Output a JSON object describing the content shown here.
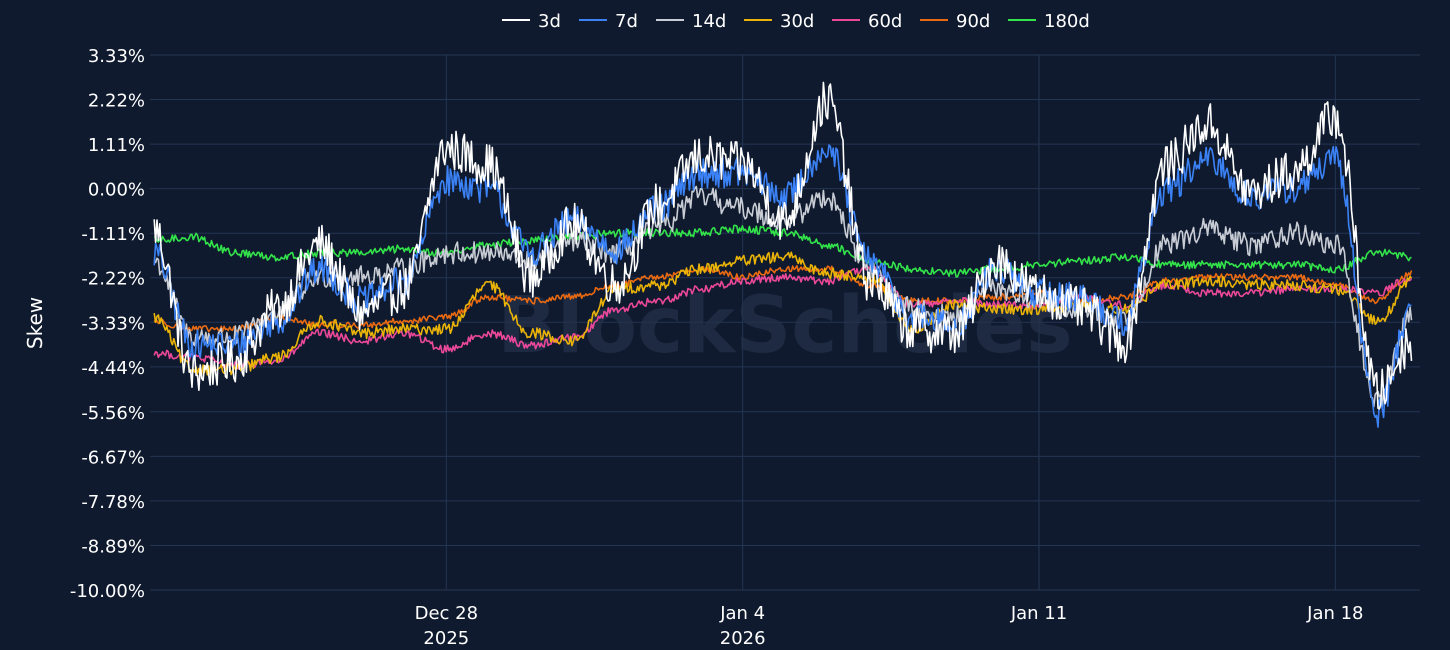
{
  "chart_data": {
    "type": "line",
    "title": "",
    "ylabel": "Skew",
    "xlabel": "",
    "watermark": "BlockScholes",
    "ylim": [
      -10.0,
      3.33
    ],
    "yticks": [
      "3.33%",
      "2.22%",
      "1.11%",
      "0.00%",
      "-1.11%",
      "-2.22%",
      "-3.33%",
      "-4.44%",
      "-5.56%",
      "-6.67%",
      "-7.78%",
      "-8.89%",
      "-10.00%"
    ],
    "ytick_values": [
      3.33,
      2.22,
      1.11,
      0.0,
      -1.11,
      -2.22,
      -3.33,
      -4.44,
      -5.56,
      -6.67,
      -7.78,
      -8.89,
      -10.0
    ],
    "x_range_days": [
      -7,
      23
    ],
    "xticks": [
      {
        "day": 0,
        "label": "Dec 28",
        "sublabel": "2025"
      },
      {
        "day": 7,
        "label": "Jan 4",
        "sublabel": "2026"
      },
      {
        "day": 14,
        "label": "Jan 11",
        "sublabel": ""
      },
      {
        "day": 21,
        "label": "Jan 18",
        "sublabel": ""
      }
    ],
    "legend": [
      "3d",
      "7d",
      "14d",
      "30d",
      "60d",
      "90d",
      "180d"
    ],
    "legend_position": "top-center",
    "x_days": [
      -6.9,
      -6,
      -5,
      -4,
      -3,
      -2,
      -1,
      0,
      1,
      2,
      3,
      4,
      5,
      6,
      7,
      8,
      9,
      10,
      11,
      12,
      13,
      14,
      15,
      16,
      17,
      18,
      19,
      20,
      21,
      22,
      22.8
    ],
    "series": [
      {
        "name": "3d",
        "color": "#ffffff",
        "values": [
          -1.0,
          -4.6,
          -4.3,
          -3.0,
          -1.4,
          -3.1,
          -2.5,
          1.0,
          0.6,
          -2.2,
          -0.9,
          -2.4,
          -0.4,
          0.8,
          0.6,
          -0.8,
          2.2,
          -2.3,
          -3.5,
          -3.6,
          -1.8,
          -2.6,
          -3.0,
          -3.8,
          0.6,
          1.6,
          -0.1,
          0.4,
          1.8,
          -5.1,
          -3.8
        ]
      },
      {
        "name": "7d",
        "color": "#3b82f6",
        "values": [
          -1.6,
          -3.9,
          -3.9,
          -3.3,
          -2.0,
          -2.8,
          -2.3,
          0.2,
          0.0,
          -1.6,
          -0.8,
          -1.5,
          -0.5,
          0.4,
          0.4,
          -0.2,
          1.0,
          -1.8,
          -3.2,
          -3.4,
          -2.0,
          -2.6,
          -2.7,
          -3.3,
          0.0,
          0.7,
          -0.2,
          0.0,
          0.7,
          -5.6,
          -3.0
        ]
      },
      {
        "name": "14d",
        "color": "#c8ccd4",
        "values": [
          -1.8,
          -3.7,
          -3.7,
          -3.1,
          -2.2,
          -2.2,
          -2.0,
          -1.6,
          -1.6,
          -1.8,
          -1.3,
          -1.6,
          -1.0,
          -0.2,
          -0.5,
          -0.8,
          -0.2,
          -2.0,
          -3.0,
          -3.2,
          -2.5,
          -2.8,
          -3.0,
          -3.2,
          -1.4,
          -1.0,
          -1.4,
          -1.1,
          -1.4,
          -5.3,
          -3.1
        ]
      },
      {
        "name": "30d",
        "color": "#eab308",
        "values": [
          -3.2,
          -4.5,
          -4.5,
          -4.2,
          -3.3,
          -3.6,
          -3.5,
          -3.5,
          -2.4,
          -3.6,
          -3.8,
          -2.5,
          -2.4,
          -2.0,
          -1.8,
          -1.7,
          -2.1,
          -2.2,
          -3.5,
          -2.9,
          -3.0,
          -3.0,
          -2.9,
          -3.0,
          -2.4,
          -2.3,
          -2.4,
          -2.4,
          -2.5,
          -3.3,
          -2.3
        ]
      },
      {
        "name": "60d",
        "color": "#ec4899",
        "values": [
          -4.1,
          -4.2,
          -4.4,
          -4.3,
          -3.6,
          -3.8,
          -3.6,
          -4.0,
          -3.6,
          -3.9,
          -3.7,
          -3.0,
          -2.8,
          -2.5,
          -2.3,
          -2.2,
          -2.3,
          -2.0,
          -2.9,
          -2.8,
          -2.9,
          -2.9,
          -2.7,
          -2.9,
          -2.4,
          -2.6,
          -2.6,
          -2.5,
          -2.5,
          -2.6,
          -2.2
        ]
      },
      {
        "name": "90d",
        "color": "#ea6a12",
        "values": [
          -3.3,
          -3.5,
          -3.5,
          -3.2,
          -3.4,
          -3.4,
          -3.3,
          -3.2,
          -2.7,
          -2.8,
          -2.7,
          -2.4,
          -2.2,
          -2.0,
          -2.2,
          -2.0,
          -2.0,
          -2.4,
          -2.8,
          -2.8,
          -2.7,
          -2.6,
          -2.8,
          -2.7,
          -2.3,
          -2.2,
          -2.2,
          -2.2,
          -2.4,
          -2.8,
          -2.1
        ]
      },
      {
        "name": "180d",
        "color": "#33e34a",
        "values": [
          -1.3,
          -1.2,
          -1.6,
          -1.7,
          -1.6,
          -1.6,
          -1.5,
          -1.6,
          -1.4,
          -1.3,
          -1.2,
          -1.1,
          -1.1,
          -1.1,
          -1.0,
          -1.1,
          -1.4,
          -1.8,
          -2.0,
          -2.1,
          -2.0,
          -1.9,
          -1.8,
          -1.7,
          -1.9,
          -1.9,
          -1.9,
          -1.9,
          -2.0,
          -1.6,
          -1.7
        ]
      }
    ]
  }
}
